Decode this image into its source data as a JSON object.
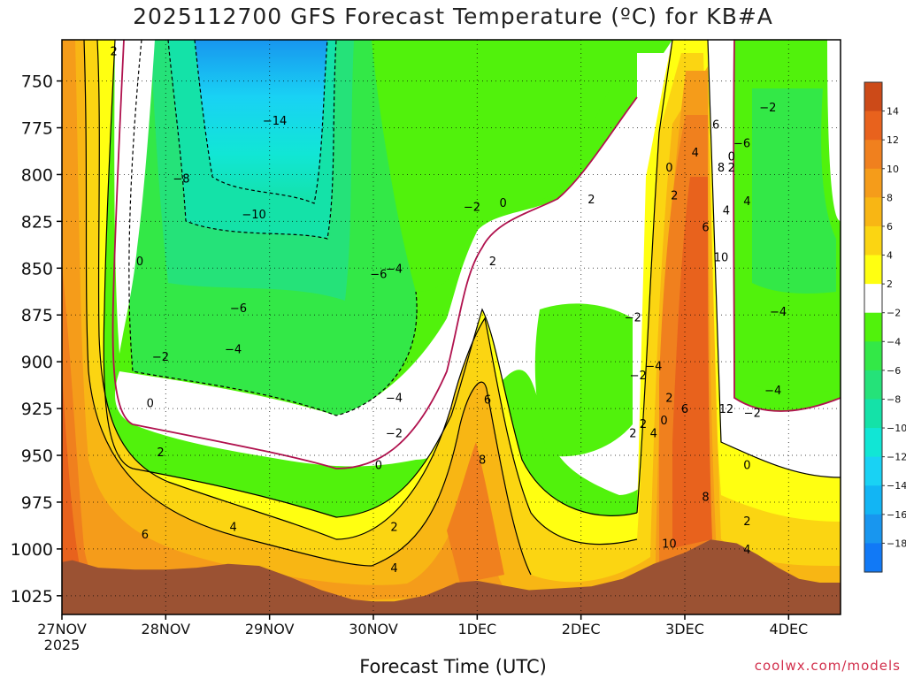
{
  "chart_data": {
    "type": "heatmap",
    "title": "2025112700 GFS Forecast Temperature (ºC) for KB#A",
    "xlabel": "Forecast Time (UTC)",
    "ylabel": "",
    "x_ticks": [
      "27NOV",
      "28NOV",
      "29NOV",
      "30NOV",
      "1DEC",
      "2DEC",
      "3DEC",
      "4DEC"
    ],
    "x_year": "2025",
    "xlim": [
      0,
      7.5
    ],
    "y_ticks": [
      750,
      775,
      800,
      825,
      850,
      875,
      900,
      925,
      950,
      975,
      1000,
      1025
    ],
    "ylim": [
      1035,
      728
    ],
    "grid": true,
    "colorbar": {
      "ticks": [
        14,
        12,
        10,
        8,
        6,
        4,
        2,
        -2,
        -4,
        -6,
        -8,
        -10,
        -12,
        -14,
        -16,
        -18
      ],
      "levels": [
        {
          "range": [
            14,
            16
          ],
          "color": "#cc4a18"
        },
        {
          "range": [
            12,
            14
          ],
          "color": "#e8621d"
        },
        {
          "range": [
            10,
            12
          ],
          "color": "#f0801e"
        },
        {
          "range": [
            8,
            10
          ],
          "color": "#f59c1a"
        },
        {
          "range": [
            6,
            8
          ],
          "color": "#f8b614"
        },
        {
          "range": [
            4,
            6
          ],
          "color": "#fbd512"
        },
        {
          "range": [
            2,
            4
          ],
          "color": "#ffff11"
        },
        {
          "range": [
            -2,
            2
          ],
          "color": "#ffffff"
        },
        {
          "range": [
            -4,
            -2
          ],
          "color": "#51f20c"
        },
        {
          "range": [
            -6,
            -4
          ],
          "color": "#33e847"
        },
        {
          "range": [
            -8,
            -6
          ],
          "color": "#25e279"
        },
        {
          "range": [
            -10,
            -8
          ],
          "color": "#14e2a8"
        },
        {
          "range": [
            -12,
            -10
          ],
          "color": "#11e6d5"
        },
        {
          "range": [
            -14,
            -12
          ],
          "color": "#19d2f4"
        },
        {
          "range": [
            -16,
            -14
          ],
          "color": "#12b5f4"
        },
        {
          "range": [
            -18,
            -16
          ],
          "color": "#1896ef"
        },
        {
          "range": [
            -20,
            -18
          ],
          "color": "#1179f6"
        }
      ]
    },
    "surface_pressure": [
      [
        0.0,
        1007
      ],
      [
        0.1,
        1006
      ],
      [
        0.35,
        1010
      ],
      [
        0.7,
        1011
      ],
      [
        1.0,
        1011
      ],
      [
        1.3,
        1010
      ],
      [
        1.6,
        1008
      ],
      [
        1.9,
        1009
      ],
      [
        2.2,
        1015
      ],
      [
        2.5,
        1022
      ],
      [
        2.8,
        1027
      ],
      [
        3.0,
        1028
      ],
      [
        3.2,
        1028
      ],
      [
        3.5,
        1025
      ],
      [
        3.8,
        1018
      ],
      [
        4.0,
        1017
      ],
      [
        4.2,
        1019
      ],
      [
        4.5,
        1022
      ],
      [
        4.8,
        1021
      ],
      [
        5.1,
        1020
      ],
      [
        5.4,
        1016
      ],
      [
        5.7,
        1008
      ],
      [
        6.0,
        1002
      ],
      [
        6.25,
        995
      ],
      [
        6.5,
        997
      ],
      [
        6.7,
        1003
      ],
      [
        6.9,
        1010
      ],
      [
        7.1,
        1016
      ],
      [
        7.3,
        1018
      ],
      [
        7.5,
        1018
      ]
    ],
    "contour_labels": [
      {
        "t": 0.5,
        "p": 734,
        "text": "2"
      },
      {
        "t": 2.05,
        "p": 771,
        "text": "−14"
      },
      {
        "t": 1.15,
        "p": 802,
        "text": "−8"
      },
      {
        "t": 1.85,
        "p": 821,
        "text": "−10"
      },
      {
        "t": 0.75,
        "p": 846,
        "text": "0"
      },
      {
        "t": 1.7,
        "p": 871,
        "text": "−6"
      },
      {
        "t": 0.95,
        "p": 897,
        "text": "−2"
      },
      {
        "t": 1.65,
        "p": 893,
        "text": "−4"
      },
      {
        "t": 0.85,
        "p": 922,
        "text": "0"
      },
      {
        "t": 0.95,
        "p": 948,
        "text": "2"
      },
      {
        "t": 1.65,
        "p": 988,
        "text": "4"
      },
      {
        "t": 0.8,
        "p": 992,
        "text": "6"
      },
      {
        "t": 3.2,
        "p": 850,
        "text": "−4"
      },
      {
        "t": 3.05,
        "p": 853,
        "text": "−6"
      },
      {
        "t": 3.2,
        "p": 919,
        "text": "−4"
      },
      {
        "t": 3.2,
        "p": 938,
        "text": "−2"
      },
      {
        "t": 3.05,
        "p": 955,
        "text": "0"
      },
      {
        "t": 3.2,
        "p": 988,
        "text": "2"
      },
      {
        "t": 3.2,
        "p": 1010,
        "text": "4"
      },
      {
        "t": 3.95,
        "p": 817,
        "text": "−2"
      },
      {
        "t": 4.25,
        "p": 815,
        "text": "0"
      },
      {
        "t": 4.15,
        "p": 846,
        "text": "2"
      },
      {
        "t": 4.1,
        "p": 920,
        "text": "6"
      },
      {
        "t": 4.05,
        "p": 952,
        "text": "8"
      },
      {
        "t": 5.1,
        "p": 813,
        "text": "2"
      },
      {
        "t": 5.5,
        "p": 876,
        "text": "−2"
      },
      {
        "t": 5.7,
        "p": 902,
        "text": "−4"
      },
      {
        "t": 5.6,
        "p": 933,
        "text": "2"
      },
      {
        "t": 5.55,
        "p": 907,
        "text": "−2"
      },
      {
        "t": 5.5,
        "p": 938,
        "text": "2"
      },
      {
        "t": 5.85,
        "p": 796,
        "text": "0"
      },
      {
        "t": 5.7,
        "p": 938,
        "text": "4"
      },
      {
        "t": 5.85,
        "p": 919,
        "text": "2"
      },
      {
        "t": 5.8,
        "p": 931,
        "text": "0"
      },
      {
        "t": 5.9,
        "p": 811,
        "text": "2"
      },
      {
        "t": 6.1,
        "p": 788,
        "text": "4"
      },
      {
        "t": 6.2,
        "p": 828,
        "text": "6"
      },
      {
        "t": 6.0,
        "p": 925,
        "text": "6"
      },
      {
        "t": 6.2,
        "p": 972,
        "text": "8"
      },
      {
        "t": 5.85,
        "p": 997,
        "text": "10"
      },
      {
        "t": 6.3,
        "p": 773,
        "text": "6"
      },
      {
        "t": 6.45,
        "p": 790,
        "text": "0"
      },
      {
        "t": 6.35,
        "p": 796,
        "text": "8"
      },
      {
        "t": 6.45,
        "p": 796,
        "text": "2"
      },
      {
        "t": 6.6,
        "p": 814,
        "text": "4"
      },
      {
        "t": 6.35,
        "p": 844,
        "text": "10"
      },
      {
        "t": 6.4,
        "p": 925,
        "text": "12"
      },
      {
        "t": 6.4,
        "p": 819,
        "text": "4"
      },
      {
        "t": 6.8,
        "p": 764,
        "text": "−2"
      },
      {
        "t": 6.55,
        "p": 783,
        "text": "−6"
      },
      {
        "t": 6.9,
        "p": 873,
        "text": "−4"
      },
      {
        "t": 6.85,
        "p": 915,
        "text": "−4"
      },
      {
        "t": 6.65,
        "p": 927,
        "text": "−2"
      },
      {
        "t": 6.6,
        "p": 955,
        "text": "0"
      },
      {
        "t": 6.6,
        "p": 985,
        "text": "2"
      },
      {
        "t": 6.6,
        "p": 1000,
        "text": "4"
      }
    ]
  },
  "source_label": "coolwx.com/models"
}
